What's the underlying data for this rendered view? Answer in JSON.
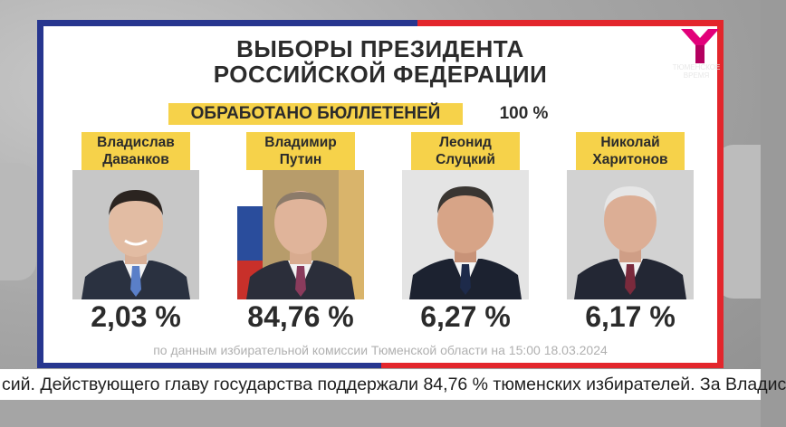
{
  "title": {
    "line1": "ВЫБОРЫ ПРЕЗИДЕНТА",
    "line2": "РОССИЙСКОЙ ФЕДЕРАЦИИ"
  },
  "ballots": {
    "label": "ОБРАБОТАНО БЮЛЛЕТЕНЕЙ",
    "value": "100 %"
  },
  "candidates": [
    {
      "first": "Владислав",
      "last": "Даванков",
      "percent": "2,03 %",
      "tie": "#5a7fc8"
    },
    {
      "first": "Владимир",
      "last": "Путин",
      "percent": "84,76 %",
      "tie": "#8a3b5c"
    },
    {
      "first": "Леонид",
      "last": "Слуцкий",
      "percent": "6,27 %",
      "tie": "#1d2a4a"
    },
    {
      "first": "Николай",
      "last": "Харитонов",
      "percent": "6,17 %",
      "tie": "#7a2a3c"
    }
  ],
  "source": "по данным избирательной комиссии Тюменской области на 15:00 18.03.2024",
  "logo": {
    "icon": "tyumen-media-logo",
    "caption": "ТЮМЕНСКОЕ ВРЕМЯ"
  },
  "ticker": "сий. Действующего главу государства поддержали 84,76 % тюменских избирателей. За Владис",
  "colors": {
    "blue": "#27368f",
    "red": "#e3262c",
    "yellow": "#f6d24a",
    "logo_pink": "#e2007a"
  }
}
